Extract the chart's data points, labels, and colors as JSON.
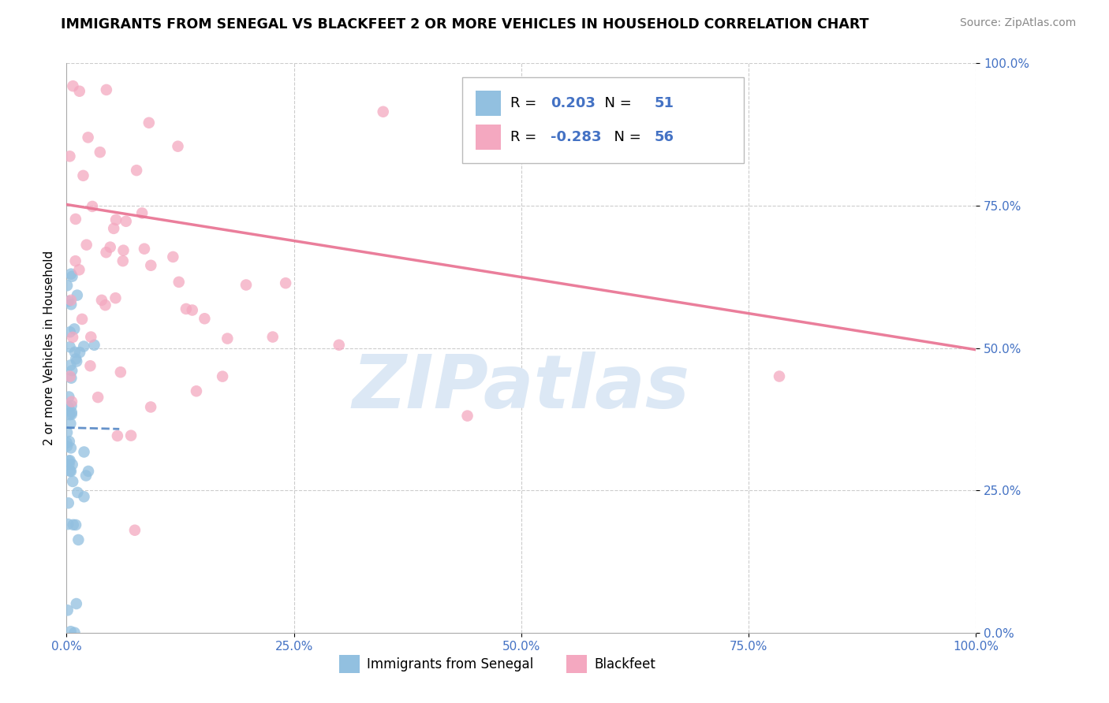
{
  "title": "IMMIGRANTS FROM SENEGAL VS BLACKFEET 2 OR MORE VEHICLES IN HOUSEHOLD CORRELATION CHART",
  "source": "Source: ZipAtlas.com",
  "ylabel": "2 or more Vehicles in Household",
  "legend_label1": "Immigrants from Senegal",
  "legend_label2": "Blackfeet",
  "R1": 0.203,
  "N1": 51,
  "R2": -0.283,
  "N2": 56,
  "color1": "#92c0e0",
  "color2": "#f4a8c0",
  "trendline1_color": "#4a7fc1",
  "trendline2_color": "#e87090",
  "watermark": "ZIPatlas",
  "watermark_color": "#dce8f5",
  "tick_color": "#4472c4",
  "xlim": [
    0,
    1
  ],
  "ylim": [
    0,
    1
  ],
  "xticks": [
    0.0,
    0.25,
    0.5,
    0.75,
    1.0
  ],
  "yticks": [
    0.0,
    0.25,
    0.5,
    0.75,
    1.0
  ],
  "xticklabels": [
    "0.0%",
    "25.0%",
    "50.0%",
    "75.0%",
    "100.0%"
  ],
  "yticklabels": [
    "0.0%",
    "25.0%",
    "50.0%",
    "75.0%",
    "100.0%"
  ]
}
